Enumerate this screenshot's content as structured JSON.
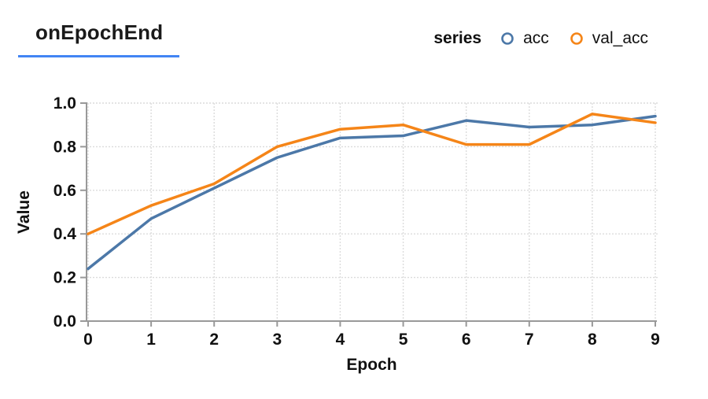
{
  "header": {
    "title": "onEpochEnd",
    "underline_color": "#4285f4"
  },
  "legend": {
    "title": "series",
    "items": [
      {
        "label": "acc",
        "color": "#4c78a8"
      },
      {
        "label": "val_acc",
        "color": "#f58518"
      }
    ]
  },
  "chart_data": {
    "type": "line",
    "title": "onEpochEnd",
    "x": [
      0,
      1,
      2,
      3,
      4,
      5,
      6,
      7,
      8,
      9
    ],
    "series": [
      {
        "name": "acc",
        "color": "#4c78a8",
        "values": [
          0.24,
          0.47,
          0.61,
          0.75,
          0.84,
          0.85,
          0.92,
          0.89,
          0.9,
          0.94
        ]
      },
      {
        "name": "val_acc",
        "color": "#f58518",
        "values": [
          0.4,
          0.53,
          0.63,
          0.8,
          0.88,
          0.9,
          0.81,
          0.81,
          0.95,
          0.91
        ]
      }
    ],
    "xlabel": "Epoch",
    "ylabel": "Value",
    "xlim": [
      0,
      9
    ],
    "ylim": [
      0.0,
      1.0
    ],
    "xticks": [
      "0",
      "1",
      "2",
      "3",
      "4",
      "5",
      "6",
      "7",
      "8",
      "9"
    ],
    "yticks": [
      "0.0",
      "0.2",
      "0.4",
      "0.6",
      "0.8",
      "1.0"
    ],
    "grid": true,
    "legend_position": "top-right",
    "axis_color": "#999999",
    "grid_color": "#dcdcdc",
    "text_color": "#111111"
  }
}
